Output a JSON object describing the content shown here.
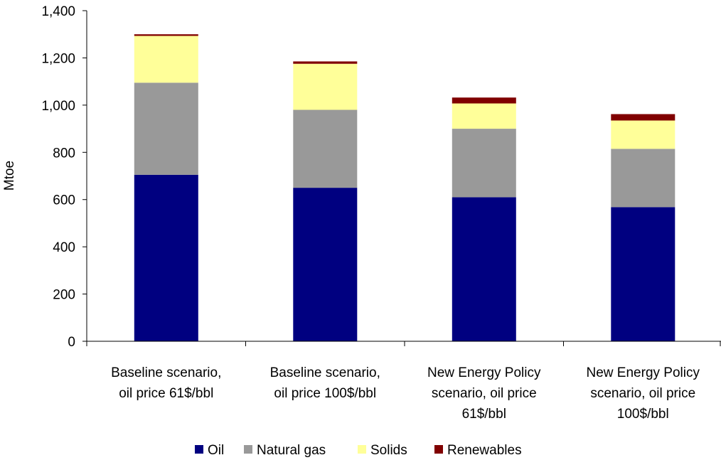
{
  "chart_data": {
    "type": "bar",
    "stacked": true,
    "ylabel": "Mtoe",
    "ylim": [
      0,
      1400
    ],
    "yticks": [
      0,
      200,
      400,
      600,
      800,
      1000,
      1200,
      1400
    ],
    "ytick_labels": [
      "0",
      "200",
      "400",
      "600",
      "800",
      "1,000",
      "1,200",
      "1,400"
    ],
    "grid": false,
    "legend_position": "bottom",
    "categories": [
      [
        "Baseline scenario,",
        "oil price 61$/bbl"
      ],
      [
        "Baseline scenario,",
        "oil price 100$/bbl"
      ],
      [
        "New Energy Policy",
        "scenario, oil price",
        "61$/bbl"
      ],
      [
        "New Energy Policy",
        "scenario, oil price",
        "100$/bbl"
      ]
    ],
    "series": [
      {
        "name": "Oil",
        "color": "#000080",
        "values": [
          705,
          650,
          610,
          568
        ]
      },
      {
        "name": "Natural gas",
        "color": "#999999",
        "values": [
          390,
          330,
          290,
          247
        ]
      },
      {
        "name": "Solids",
        "color": "#FFFF99",
        "values": [
          198,
          195,
          107,
          120
        ]
      },
      {
        "name": "Renewables",
        "color": "#800000",
        "values": [
          7,
          10,
          25,
          27
        ]
      }
    ]
  }
}
